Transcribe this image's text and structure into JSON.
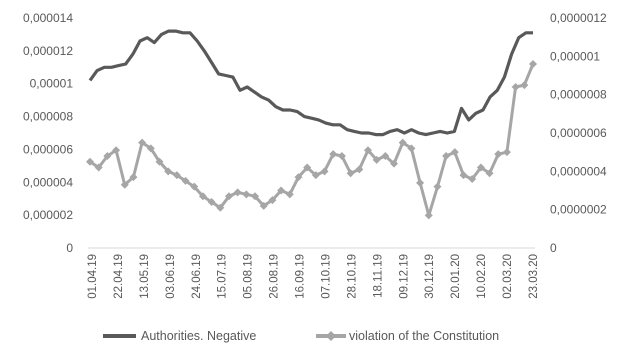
{
  "chart_data": {
    "type": "line",
    "title": "",
    "x_tick_labels": [
      "01.04.19",
      "22.04.19",
      "13.05.19",
      "03.06.19",
      "24.06.19",
      "15.07.19",
      "05.08.19",
      "26.08.19",
      "16.09.19",
      "07.10.19",
      "28.10.19",
      "18.11.19",
      "09.12.19",
      "30.12.19",
      "20.01.20",
      "10.02.20",
      "02.03.20",
      "23.03.20"
    ],
    "y_left": {
      "min": 0,
      "max": 1.4e-05,
      "ticks": [
        "0",
        "0,000002",
        "0,000004",
        "0,000006",
        "0,000008",
        "0,00001",
        "0,000012",
        "0,000014"
      ]
    },
    "y_right": {
      "min": 0,
      "max": 1.2e-06,
      "ticks": [
        "0",
        "0,0000002",
        "0,0000004",
        "0,0000006",
        "0,0000008",
        "0,000001",
        "0,0000012"
      ]
    },
    "grid": false,
    "legend_position": "bottom",
    "series": [
      {
        "name": "Authorities. Negative",
        "axis": "left",
        "color": "#595959",
        "marker": "none",
        "values": [
          1.02e-05,
          1.08e-05,
          1.1e-05,
          1.1e-05,
          1.11e-05,
          1.12e-05,
          1.18e-05,
          1.26e-05,
          1.28e-05,
          1.25e-05,
          1.3e-05,
          1.32e-05,
          1.32e-05,
          1.31e-05,
          1.31e-05,
          1.26e-05,
          1.2e-05,
          1.13e-05,
          1.06e-05,
          1.05e-05,
          1.04e-05,
          9.6e-06,
          9.8e-06,
          9.5e-06,
          9.2e-06,
          9e-06,
          8.6e-06,
          8.4e-06,
          8.4e-06,
          8.3e-06,
          8e-06,
          7.9e-06,
          7.8e-06,
          7.6e-06,
          7.5e-06,
          7.5e-06,
          7.2e-06,
          7.1e-06,
          7e-06,
          7e-06,
          6.9e-06,
          6.9e-06,
          7.1e-06,
          7.2e-06,
          7e-06,
          7.2e-06,
          7e-06,
          6.9e-06,
          7e-06,
          7.1e-06,
          7e-06,
          7.1e-06,
          8.5e-06,
          7.8e-06,
          8.2e-06,
          8.4e-06,
          9.2e-06,
          9.6e-06,
          1.04e-05,
          1.18e-05,
          1.28e-05,
          1.31e-05,
          1.31e-05
        ]
      },
      {
        "name": "violation of the Constitution",
        "axis": "right",
        "color": "#a6a6a6",
        "marker": "diamond",
        "values": [
          4.5e-07,
          4.2e-07,
          4.8e-07,
          5.1e-07,
          3.3e-07,
          3.7e-07,
          5.5e-07,
          5.2e-07,
          4.5e-07,
          4e-07,
          3.8e-07,
          3.5e-07,
          3.2e-07,
          2.7e-07,
          2.4e-07,
          2.1e-07,
          2.7e-07,
          2.9e-07,
          2.8e-07,
          2.7e-07,
          2.2e-07,
          2.5e-07,
          3e-07,
          2.8e-07,
          3.7e-07,
          4.2e-07,
          3.8e-07,
          4e-07,
          4.9e-07,
          4.8e-07,
          3.9e-07,
          4.1e-07,
          5.1e-07,
          4.6e-07,
          4.8e-07,
          4.4e-07,
          5.5e-07,
          5.2e-07,
          3.4e-07,
          1.7e-07,
          3.2e-07,
          4.8e-07,
          5e-07,
          3.8e-07,
          3.6e-07,
          4.2e-07,
          3.9e-07,
          4.9e-07,
          5e-07,
          8.4e-07,
          8.5e-07,
          9.6e-07
        ]
      }
    ]
  }
}
